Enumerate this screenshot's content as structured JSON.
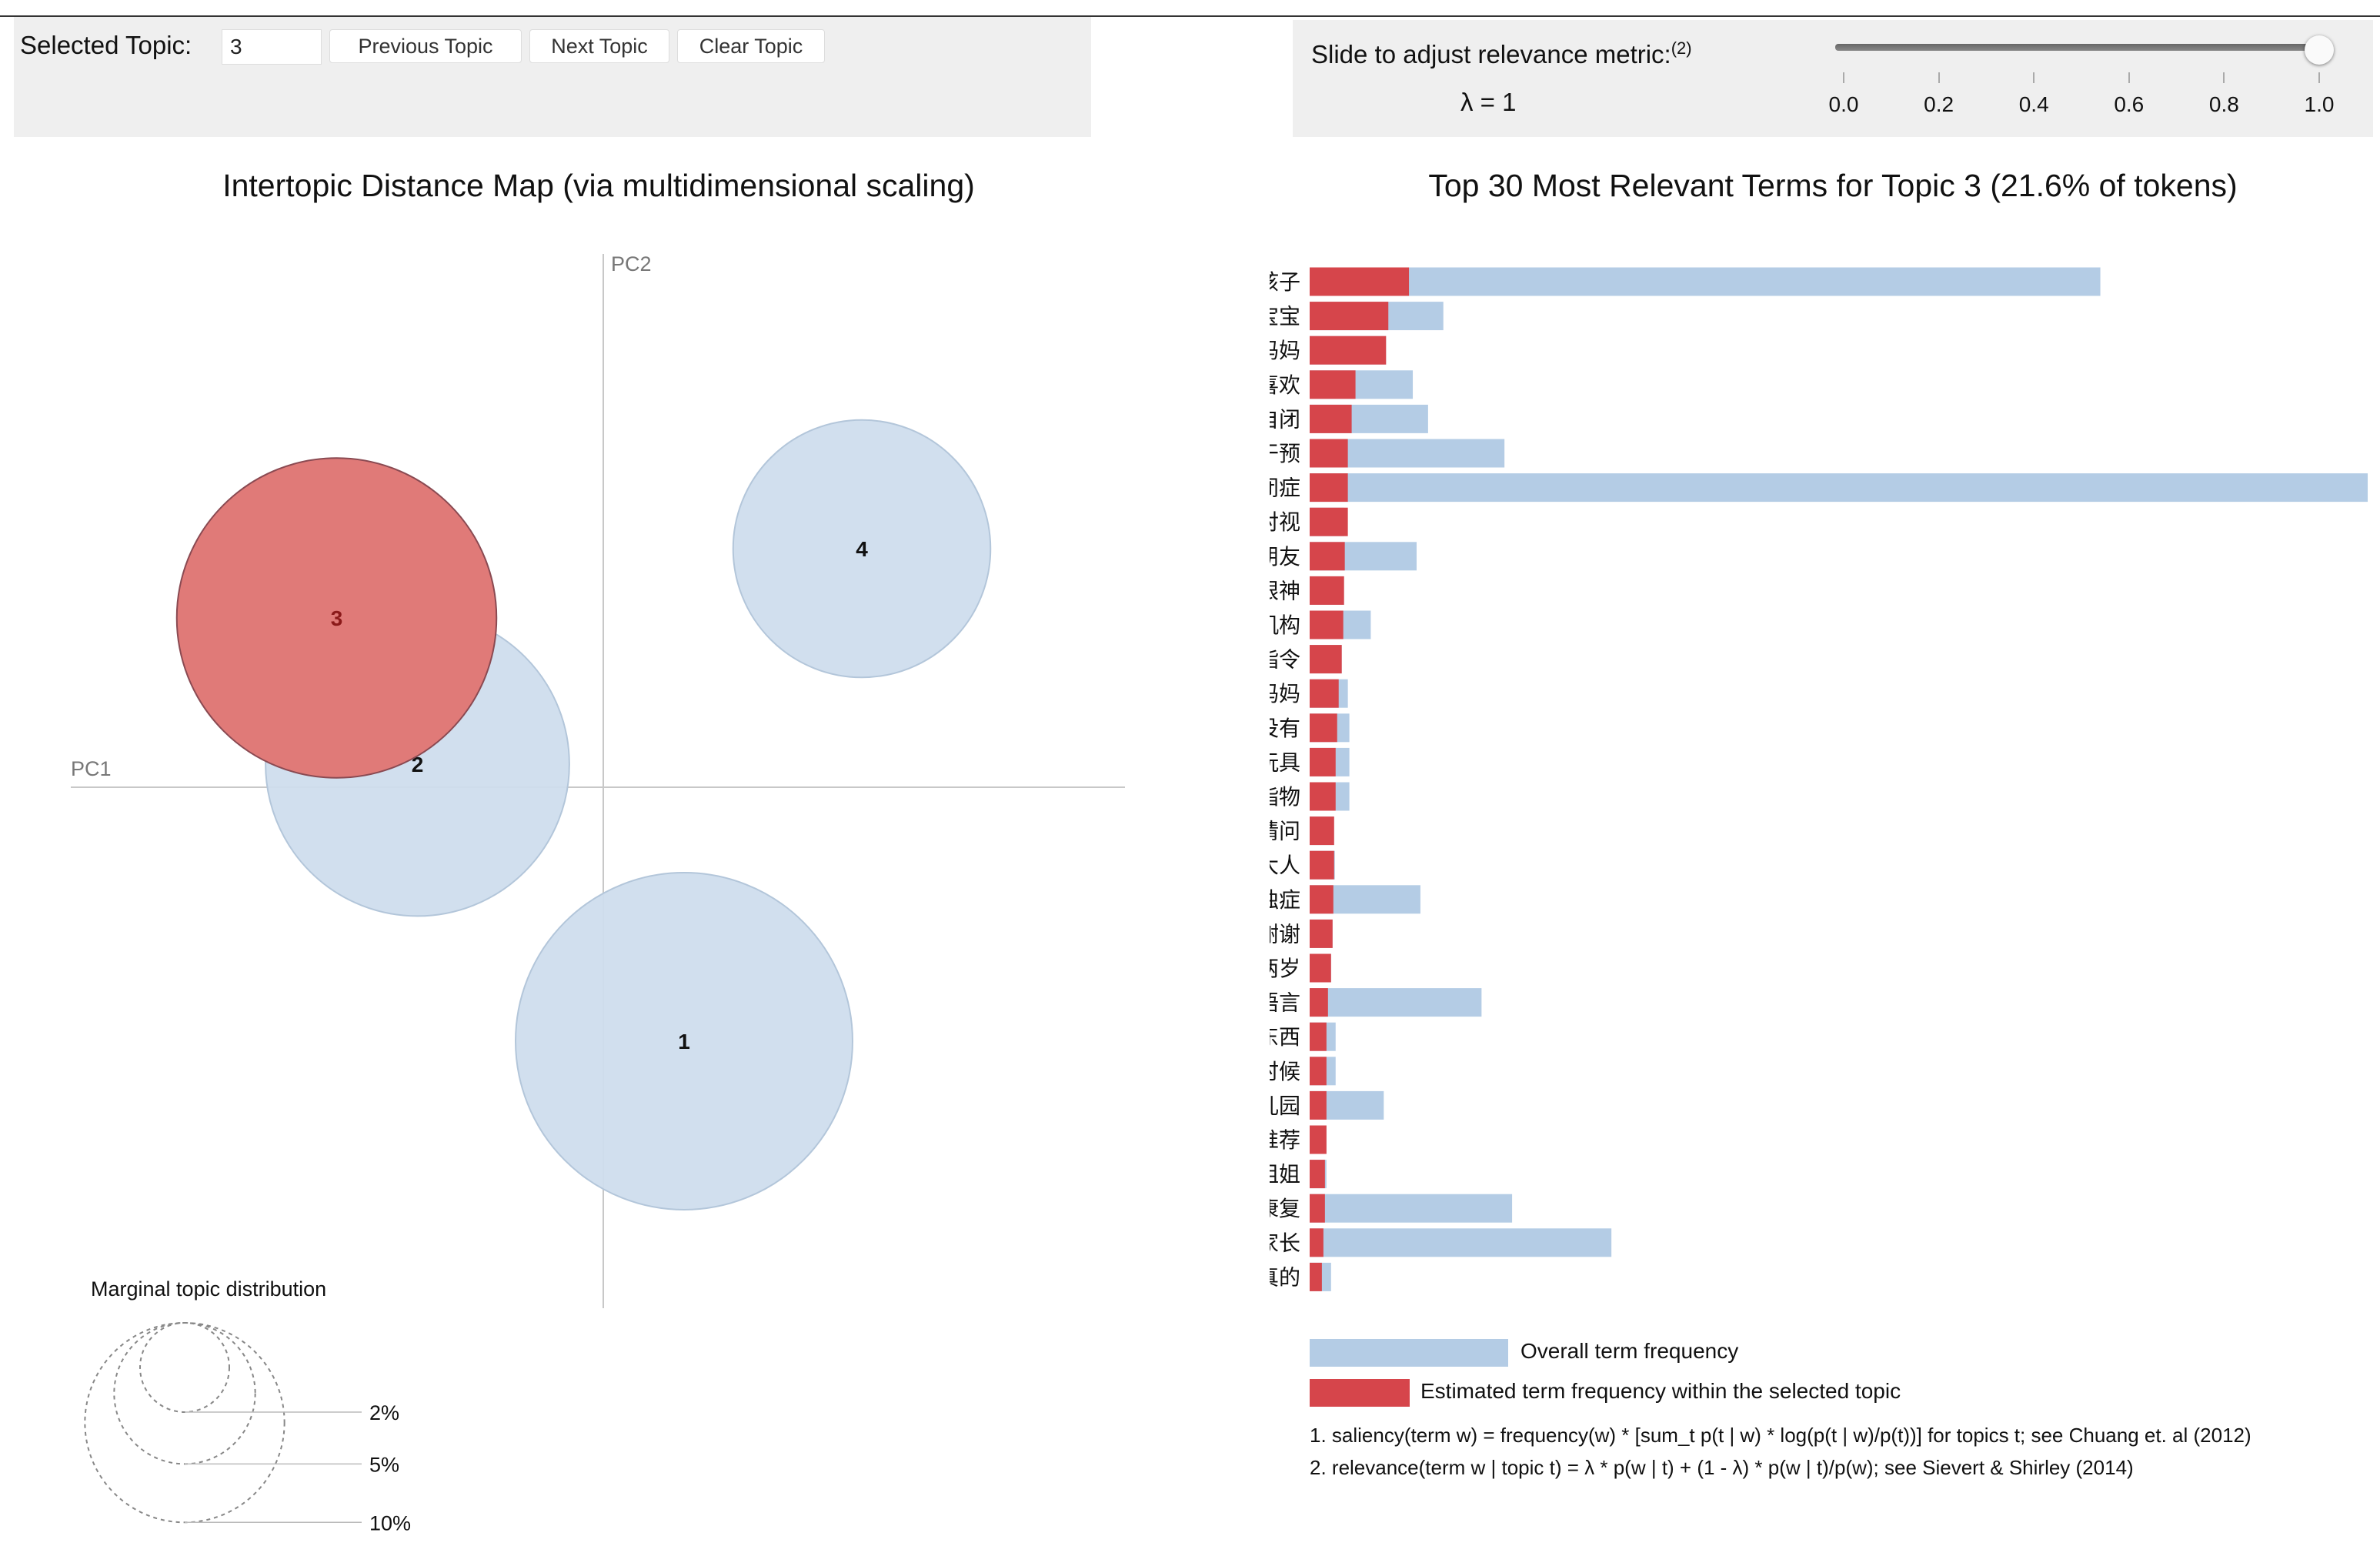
{
  "controls": {
    "selected_topic_label": "Selected Topic:",
    "selected_topic_value": "3",
    "previous_label": "Previous Topic",
    "next_label": "Next Topic",
    "clear_label": "Clear Topic",
    "slider_label": "Slide to adjust relevance metric:",
    "slider_footnote": "(2)",
    "lambda_text": "λ = 1",
    "lambda_value": 1.0,
    "slider_ticks": [
      "0.0",
      "0.2",
      "0.4",
      "0.6",
      "0.8",
      "1.0"
    ]
  },
  "chart_data": [
    {
      "type": "scatter",
      "title": "Intertopic Distance Map (via multidimensional scaling)",
      "xlabel": "PC1",
      "ylabel": "PC2",
      "selected_topic": 3,
      "topics": [
        {
          "id": "1",
          "pc1": 0.1,
          "pc2": -0.33,
          "size_pct": 24.0
        },
        {
          "id": "2",
          "pc1": -0.23,
          "pc2": 0.03,
          "size_pct": 19.5
        },
        {
          "id": "3",
          "pc1": -0.33,
          "pc2": 0.22,
          "size_pct": 21.6
        },
        {
          "id": "4",
          "pc1": 0.32,
          "pc2": 0.31,
          "size_pct": 14.0
        }
      ],
      "marginal": {
        "title": "Marginal topic distribution",
        "labels": [
          "2%",
          "5%",
          "10%"
        ],
        "values": [
          2,
          5,
          10
        ]
      }
    },
    {
      "type": "bar",
      "orientation": "horizontal",
      "title": "Top 30 Most Relevant Terms for Topic 3 (21.6% of tokens)",
      "terms": [
        "孩子",
        "宝宝",
        "妈妈",
        "喜欢",
        "自闭",
        "干预",
        "自闭症",
        "对视",
        "小朋友",
        "眼神",
        "机构",
        "指令",
        "爸爸妈妈",
        "有没有",
        "玩具",
        "指物",
        "请问",
        "大人",
        "孤独症",
        "谢谢",
        "两岁",
        "语言",
        "东西",
        "有时候",
        "幼儿园",
        "推荐",
        "姐姐",
        "康复",
        "家长",
        "真的"
      ],
      "series": [
        {
          "name": "Overall term frequency",
          "color": "#b4cce5",
          "values": [
            1035,
            175,
            100,
            135,
            155,
            255,
            1385,
            45,
            140,
            45,
            80,
            42,
            50,
            52,
            52,
            52,
            32,
            33,
            145,
            30,
            28,
            225,
            34,
            34,
            97,
            22,
            22,
            265,
            395,
            28
          ]
        },
        {
          "name": "Estimated term frequency within the selected topic",
          "color": "#d6454b",
          "values": [
            130,
            103,
            100,
            60,
            55,
            50,
            50,
            50,
            46,
            45,
            44,
            42,
            38,
            36,
            34,
            34,
            32,
            32,
            31,
            30,
            28,
            24,
            22,
            22,
            22,
            22,
            20,
            20,
            18,
            16
          ]
        }
      ],
      "xlim": [
        0,
        1390
      ],
      "footnotes": [
        "1. saliency(term w) = frequency(w) * [sum_t p(t | w) * log(p(t | w)/p(t))] for topics t; see Chuang et. al (2012)",
        "2. relevance(term w | topic t) = λ * p(w | t) + (1 - λ) * p(w | t)/p(w); see Sievert & Shirley (2014)"
      ]
    }
  ],
  "colors": {
    "selected": "#e07a78",
    "selected_stroke": "#8a4a52",
    "unselected": "#cfdded",
    "unselected_stroke": "#b3c6da",
    "overall_bar": "#b4cce5",
    "topic_bar": "#d6454b"
  }
}
